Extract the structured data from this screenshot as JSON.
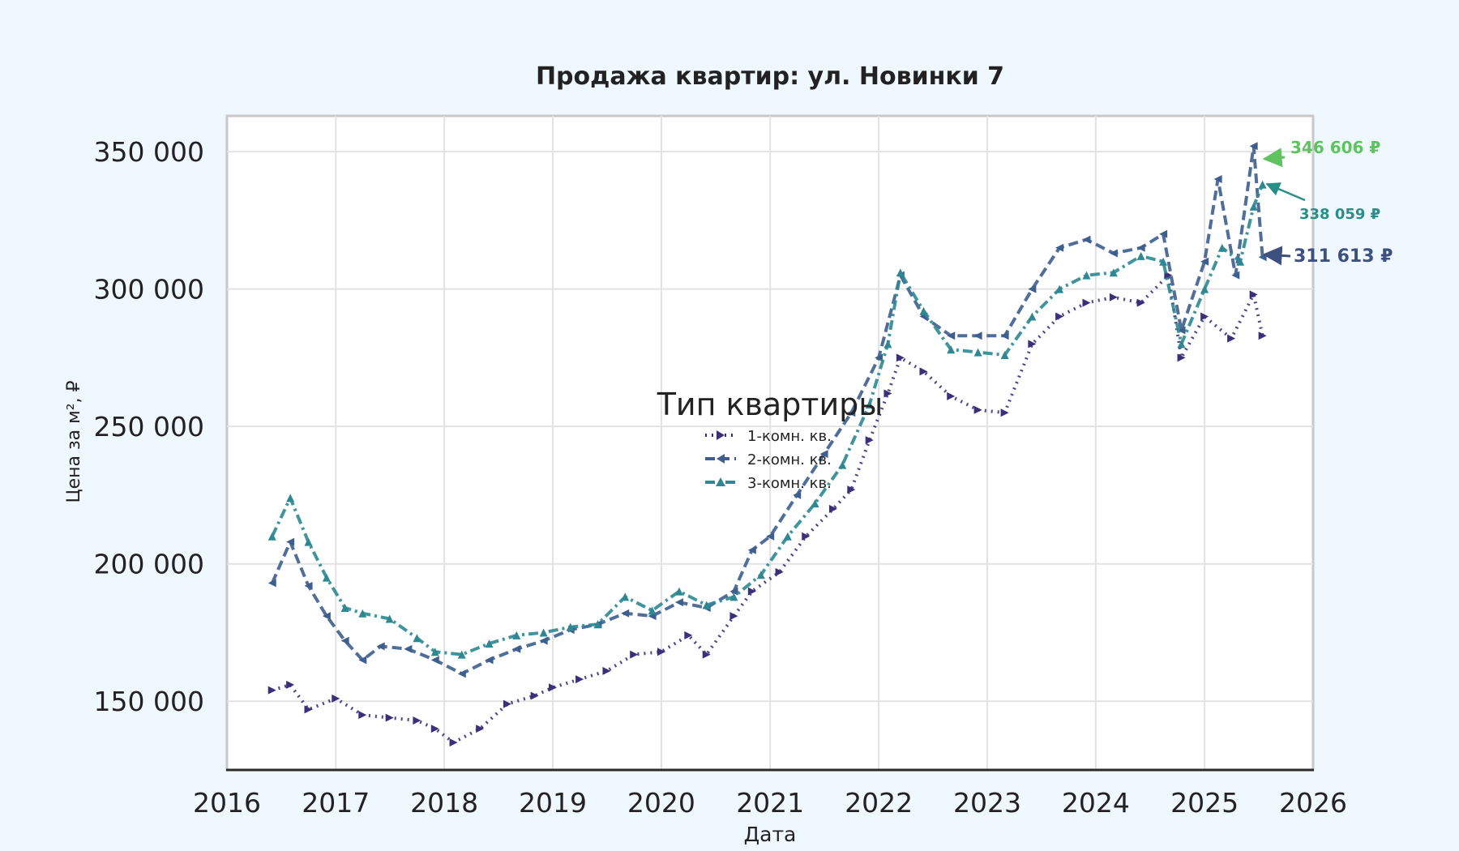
{
  "chart_data": {
    "type": "line",
    "title": "Продажа квартир: ул. Новинки 7",
    "xlabel": "Дата",
    "ylabel": "Цена за м², ₽",
    "xlim": [
      "2016-01-01",
      "2026-01-01"
    ],
    "ylim": [
      125000,
      363000
    ],
    "x_ticks": [
      "2016",
      "2017",
      "2018",
      "2019",
      "2020",
      "2021",
      "2022",
      "2023",
      "2024",
      "2025",
      "2026"
    ],
    "y_ticks": [
      150000,
      200000,
      250000,
      300000,
      350000
    ],
    "y_tick_labels": [
      "150 000",
      "200 000",
      "250 000",
      "300 000",
      "350 000"
    ],
    "grid": true,
    "legend": {
      "title": "Тип квартиры",
      "position": "center",
      "entries": [
        "1-комн. кв.",
        "2-комн. кв.",
        "3-комн. кв."
      ]
    },
    "series": [
      {
        "name": "1-комн. кв.",
        "color": "#3b2f7a",
        "style": "dotted",
        "marker": "triangle-right",
        "points": [
          [
            "2016-06-01",
            154000
          ],
          [
            "2016-08-01",
            156000
          ],
          [
            "2016-10-01",
            147000
          ],
          [
            "2017-01-01",
            151000
          ],
          [
            "2017-04-01",
            145000
          ],
          [
            "2017-07-01",
            144000
          ],
          [
            "2017-10-01",
            143000
          ],
          [
            "2017-12-01",
            140000
          ],
          [
            "2018-02-01",
            135000
          ],
          [
            "2018-05-01",
            140000
          ],
          [
            "2018-08-01",
            149000
          ],
          [
            "2018-11-01",
            152000
          ],
          [
            "2019-01-01",
            155000
          ],
          [
            "2019-04-01",
            158000
          ],
          [
            "2019-07-01",
            161000
          ],
          [
            "2019-10-01",
            167000
          ],
          [
            "2020-01-01",
            168000
          ],
          [
            "2020-04-01",
            174000
          ],
          [
            "2020-06-01",
            167000
          ],
          [
            "2020-09-01",
            181000
          ],
          [
            "2020-11-01",
            190000
          ],
          [
            "2021-02-01",
            197000
          ],
          [
            "2021-05-01",
            210000
          ],
          [
            "2021-08-01",
            220000
          ],
          [
            "2021-10-01",
            227000
          ],
          [
            "2021-12-01",
            245000
          ],
          [
            "2022-02-01",
            262000
          ],
          [
            "2022-03-15",
            275000
          ],
          [
            "2022-06-01",
            270000
          ],
          [
            "2022-09-01",
            261000
          ],
          [
            "2022-12-01",
            256000
          ],
          [
            "2023-03-01",
            255000
          ],
          [
            "2023-06-01",
            280000
          ],
          [
            "2023-09-01",
            290000
          ],
          [
            "2023-12-01",
            295000
          ],
          [
            "2024-03-01",
            297000
          ],
          [
            "2024-06-01",
            295000
          ],
          [
            "2024-09-01",
            305000
          ],
          [
            "2024-10-15",
            275000
          ],
          [
            "2025-01-01",
            290000
          ],
          [
            "2025-04-01",
            282000
          ],
          [
            "2025-06-15",
            298000
          ],
          [
            "2025-07-15",
            283000
          ]
        ]
      },
      {
        "name": "2-комн. кв.",
        "color": "#3e5e8e",
        "style": "dashed",
        "marker": "triangle-left",
        "annotation": "311 613 ₽",
        "points": [
          [
            "2016-06-01",
            193000
          ],
          [
            "2016-08-01",
            208000
          ],
          [
            "2016-10-01",
            192000
          ],
          [
            "2016-12-01",
            181000
          ],
          [
            "2017-02-01",
            172000
          ],
          [
            "2017-04-01",
            165000
          ],
          [
            "2017-06-01",
            170000
          ],
          [
            "2017-09-01",
            169000
          ],
          [
            "2017-12-01",
            165000
          ],
          [
            "2018-03-01",
            160000
          ],
          [
            "2018-06-01",
            165000
          ],
          [
            "2018-09-01",
            169000
          ],
          [
            "2018-12-01",
            172000
          ],
          [
            "2019-03-01",
            176000
          ],
          [
            "2019-06-01",
            178000
          ],
          [
            "2019-09-01",
            182000
          ],
          [
            "2019-12-01",
            181000
          ],
          [
            "2020-03-01",
            186000
          ],
          [
            "2020-06-01",
            184000
          ],
          [
            "2020-09-01",
            190000
          ],
          [
            "2020-11-01",
            205000
          ],
          [
            "2021-01-01",
            210000
          ],
          [
            "2021-04-01",
            225000
          ],
          [
            "2021-07-01",
            240000
          ],
          [
            "2021-10-01",
            255000
          ],
          [
            "2022-01-01",
            275000
          ],
          [
            "2022-03-15",
            305000
          ],
          [
            "2022-06-01",
            290000
          ],
          [
            "2022-09-01",
            283000
          ],
          [
            "2022-12-01",
            283000
          ],
          [
            "2023-03-01",
            283000
          ],
          [
            "2023-06-01",
            300000
          ],
          [
            "2023-09-01",
            315000
          ],
          [
            "2023-12-01",
            318000
          ],
          [
            "2024-03-01",
            313000
          ],
          [
            "2024-06-01",
            315000
          ],
          [
            "2024-08-15",
            320000
          ],
          [
            "2024-10-15",
            285000
          ],
          [
            "2025-01-01",
            310000
          ],
          [
            "2025-02-15",
            340000
          ],
          [
            "2025-04-15",
            305000
          ],
          [
            "2025-06-15",
            352000
          ],
          [
            "2025-07-15",
            311613
          ]
        ]
      },
      {
        "name": "3-комн. кв.",
        "color": "#2e8891",
        "style": "dashdot",
        "marker": "triangle-up",
        "annotation": "338 059 ₽",
        "points": [
          [
            "2016-06-01",
            210000
          ],
          [
            "2016-08-01",
            224000
          ],
          [
            "2016-10-01",
            208000
          ],
          [
            "2016-12-01",
            195000
          ],
          [
            "2017-02-01",
            184000
          ],
          [
            "2017-04-01",
            182000
          ],
          [
            "2017-07-01",
            180000
          ],
          [
            "2017-10-01",
            173000
          ],
          [
            "2017-12-01",
            168000
          ],
          [
            "2018-03-01",
            167000
          ],
          [
            "2018-06-01",
            171000
          ],
          [
            "2018-09-01",
            174000
          ],
          [
            "2018-12-01",
            175000
          ],
          [
            "2019-03-01",
            177000
          ],
          [
            "2019-06-01",
            178000
          ],
          [
            "2019-09-01",
            188000
          ],
          [
            "2019-12-01",
            183000
          ],
          [
            "2020-03-01",
            190000
          ],
          [
            "2020-06-01",
            185000
          ],
          [
            "2020-09-01",
            188000
          ],
          [
            "2020-12-01",
            196000
          ],
          [
            "2021-03-01",
            210000
          ],
          [
            "2021-06-01",
            222000
          ],
          [
            "2021-09-01",
            236000
          ],
          [
            "2021-12-01",
            258000
          ],
          [
            "2022-02-01",
            280000
          ],
          [
            "2022-03-15",
            306000
          ],
          [
            "2022-06-01",
            292000
          ],
          [
            "2022-09-01",
            278000
          ],
          [
            "2022-12-01",
            277000
          ],
          [
            "2023-03-01",
            276000
          ],
          [
            "2023-06-01",
            290000
          ],
          [
            "2023-09-01",
            300000
          ],
          [
            "2023-12-01",
            305000
          ],
          [
            "2024-03-01",
            306000
          ],
          [
            "2024-06-01",
            312000
          ],
          [
            "2024-08-15",
            310000
          ],
          [
            "2024-10-15",
            280000
          ],
          [
            "2025-01-01",
            300000
          ],
          [
            "2025-03-01",
            315000
          ],
          [
            "2025-05-01",
            310000
          ],
          [
            "2025-06-15",
            330000
          ],
          [
            "2025-07-15",
            338059
          ]
        ]
      }
    ],
    "annotations": [
      {
        "text": "346 606 ₽",
        "color": "#5fc45f"
      },
      {
        "text": "338 059 ₽",
        "color": "#2a8e88",
        "series": "3-комн. кв."
      },
      {
        "text": "311 613 ₽",
        "color": "#3e5080",
        "series": "2-комн. кв."
      }
    ]
  }
}
